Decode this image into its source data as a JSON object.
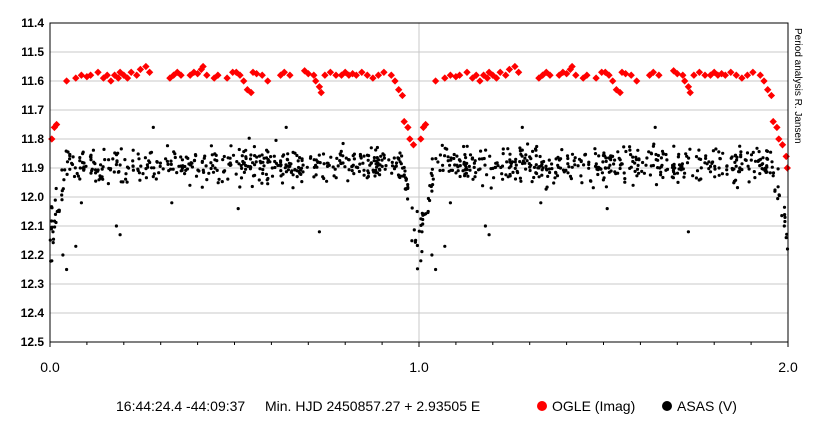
{
  "chart_data": {
    "type": "scatter",
    "x_range": [
      0.0,
      2.0
    ],
    "y_range": [
      11.4,
      12.5
    ],
    "y_inverted": true,
    "y_ticks": [
      "11.4",
      "11.5",
      "11.6",
      "11.7",
      "11.8",
      "11.9",
      "12.0",
      "12.1",
      "12.2",
      "12.3",
      "12.4",
      "12.5"
    ],
    "x_ticks": [
      "0.0",
      "1.0",
      "2.0"
    ],
    "grid": true,
    "side_label": "Period analysis R. Jansen",
    "coords": "16:44:24.4 -44:09:37",
    "ephemeris": "Min. HJD 2450857.27 + 2.93505 E",
    "legend_position": "bottom",
    "series": [
      {
        "name": "OGLE (Imag)",
        "color": "#ff0000",
        "points": [
          [
            0.005,
            11.8
          ],
          [
            0.012,
            11.76
          ],
          [
            0.018,
            11.75
          ],
          [
            0.045,
            11.6
          ],
          [
            0.07,
            11.59
          ],
          [
            0.085,
            11.58
          ],
          [
            0.1,
            11.585
          ],
          [
            0.11,
            11.58
          ],
          [
            0.13,
            11.57
          ],
          [
            0.145,
            11.59
          ],
          [
            0.155,
            11.58
          ],
          [
            0.165,
            11.6
          ],
          [
            0.175,
            11.58
          ],
          [
            0.185,
            11.59
          ],
          [
            0.19,
            11.57
          ],
          [
            0.2,
            11.58
          ],
          [
            0.21,
            11.59
          ],
          [
            0.22,
            11.57
          ],
          [
            0.235,
            11.58
          ],
          [
            0.245,
            11.56
          ],
          [
            0.26,
            11.55
          ],
          [
            0.27,
            11.57
          ],
          [
            0.325,
            11.59
          ],
          [
            0.335,
            11.58
          ],
          [
            0.345,
            11.57
          ],
          [
            0.355,
            11.58
          ],
          [
            0.38,
            11.58
          ],
          [
            0.39,
            11.57
          ],
          [
            0.4,
            11.575
          ],
          [
            0.41,
            11.56
          ],
          [
            0.415,
            11.55
          ],
          [
            0.425,
            11.58
          ],
          [
            0.445,
            11.59
          ],
          [
            0.455,
            11.58
          ],
          [
            0.48,
            11.59
          ],
          [
            0.495,
            11.57
          ],
          [
            0.505,
            11.57
          ],
          [
            0.515,
            11.58
          ],
          [
            0.525,
            11.6
          ],
          [
            0.535,
            11.63
          ],
          [
            0.545,
            11.64
          ],
          [
            0.55,
            11.57
          ],
          [
            0.56,
            11.575
          ],
          [
            0.575,
            11.58
          ],
          [
            0.59,
            11.6
          ],
          [
            0.625,
            11.58
          ],
          [
            0.635,
            11.57
          ],
          [
            0.65,
            11.58
          ],
          [
            0.69,
            11.565
          ],
          [
            0.7,
            11.575
          ],
          [
            0.715,
            11.58
          ],
          [
            0.72,
            11.6
          ],
          [
            0.73,
            11.62
          ],
          [
            0.735,
            11.64
          ],
          [
            0.745,
            11.58
          ],
          [
            0.76,
            11.57
          ],
          [
            0.775,
            11.58
          ],
          [
            0.79,
            11.58
          ],
          [
            0.8,
            11.57
          ],
          [
            0.81,
            11.58
          ],
          [
            0.82,
            11.575
          ],
          [
            0.83,
            11.58
          ],
          [
            0.845,
            11.57
          ],
          [
            0.86,
            11.58
          ],
          [
            0.875,
            11.59
          ],
          [
            0.89,
            11.58
          ],
          [
            0.905,
            11.57
          ],
          [
            0.925,
            11.58
          ],
          [
            0.935,
            11.6
          ],
          [
            0.945,
            11.63
          ],
          [
            0.955,
            11.65
          ],
          [
            0.96,
            11.74
          ],
          [
            0.97,
            11.76
          ],
          [
            0.975,
            11.8
          ],
          [
            0.985,
            11.82
          ],
          [
            1.005,
            11.8
          ],
          [
            1.012,
            11.76
          ],
          [
            1.018,
            11.75
          ],
          [
            1.045,
            11.6
          ],
          [
            1.07,
            11.59
          ],
          [
            1.085,
            11.58
          ],
          [
            1.1,
            11.585
          ],
          [
            1.11,
            11.58
          ],
          [
            1.13,
            11.57
          ],
          [
            1.145,
            11.59
          ],
          [
            1.155,
            11.58
          ],
          [
            1.165,
            11.6
          ],
          [
            1.175,
            11.58
          ],
          [
            1.185,
            11.59
          ],
          [
            1.19,
            11.57
          ],
          [
            1.2,
            11.58
          ],
          [
            1.21,
            11.59
          ],
          [
            1.22,
            11.57
          ],
          [
            1.235,
            11.58
          ],
          [
            1.245,
            11.56
          ],
          [
            1.26,
            11.55
          ],
          [
            1.27,
            11.57
          ],
          [
            1.325,
            11.59
          ],
          [
            1.335,
            11.58
          ],
          [
            1.345,
            11.57
          ],
          [
            1.355,
            11.58
          ],
          [
            1.38,
            11.58
          ],
          [
            1.39,
            11.57
          ],
          [
            1.4,
            11.575
          ],
          [
            1.41,
            11.56
          ],
          [
            1.415,
            11.55
          ],
          [
            1.425,
            11.58
          ],
          [
            1.445,
            11.59
          ],
          [
            1.455,
            11.58
          ],
          [
            1.48,
            11.59
          ],
          [
            1.495,
            11.57
          ],
          [
            1.505,
            11.57
          ],
          [
            1.515,
            11.58
          ],
          [
            1.525,
            11.6
          ],
          [
            1.535,
            11.63
          ],
          [
            1.545,
            11.64
          ],
          [
            1.55,
            11.57
          ],
          [
            1.56,
            11.575
          ],
          [
            1.575,
            11.58
          ],
          [
            1.59,
            11.6
          ],
          [
            1.625,
            11.58
          ],
          [
            1.635,
            11.57
          ],
          [
            1.65,
            11.58
          ],
          [
            1.69,
            11.565
          ],
          [
            1.7,
            11.575
          ],
          [
            1.715,
            11.58
          ],
          [
            1.72,
            11.6
          ],
          [
            1.73,
            11.62
          ],
          [
            1.735,
            11.64
          ],
          [
            1.745,
            11.58
          ],
          [
            1.76,
            11.57
          ],
          [
            1.775,
            11.58
          ],
          [
            1.79,
            11.58
          ],
          [
            1.8,
            11.57
          ],
          [
            1.81,
            11.58
          ],
          [
            1.82,
            11.575
          ],
          [
            1.83,
            11.58
          ],
          [
            1.845,
            11.57
          ],
          [
            1.86,
            11.58
          ],
          [
            1.875,
            11.59
          ],
          [
            1.89,
            11.58
          ],
          [
            1.905,
            11.57
          ],
          [
            1.925,
            11.58
          ],
          [
            1.935,
            11.6
          ],
          [
            1.945,
            11.63
          ],
          [
            1.955,
            11.65
          ],
          [
            1.96,
            11.74
          ],
          [
            1.97,
            11.76
          ],
          [
            1.975,
            11.8
          ],
          [
            1.985,
            11.82
          ],
          [
            1.995,
            11.86
          ],
          [
            1.998,
            11.9
          ]
        ]
      },
      {
        "name": "ASAS (V)",
        "color": "#000000",
        "approx_count_per_cycle": 480,
        "mean_mag_out_of_eclipse": 11.89,
        "scatter_mag": 0.055,
        "eclipse_phase_primary": 0.0,
        "eclipse_depth_mag": 12.22,
        "outliers": [
          [
            0.005,
            12.22
          ],
          [
            0.008,
            12.12
          ],
          [
            0.015,
            12.06
          ],
          [
            0.025,
            12.05
          ],
          [
            0.035,
            12.2
          ],
          [
            0.045,
            12.25
          ],
          [
            0.07,
            12.17
          ],
          [
            0.085,
            12.02
          ],
          [
            0.18,
            12.1
          ],
          [
            0.19,
            12.13
          ],
          [
            0.33,
            12.02
          ],
          [
            0.51,
            12.04
          ],
          [
            0.73,
            12.12
          ],
          [
            0.64,
            11.76
          ],
          [
            0.28,
            11.76
          ],
          [
            0.995,
            12.05
          ],
          [
            1.005,
            12.22
          ],
          [
            1.008,
            12.12
          ],
          [
            1.015,
            12.06
          ],
          [
            1.025,
            12.05
          ],
          [
            1.035,
            12.2
          ],
          [
            1.045,
            12.25
          ],
          [
            1.07,
            12.17
          ],
          [
            1.085,
            12.02
          ],
          [
            1.18,
            12.1
          ],
          [
            1.19,
            12.13
          ],
          [
            1.33,
            12.02
          ],
          [
            1.51,
            12.04
          ],
          [
            1.73,
            12.12
          ],
          [
            1.64,
            11.76
          ],
          [
            1.28,
            11.76
          ],
          [
            1.99,
            12.1
          ],
          [
            1.995,
            12.14
          ]
        ]
      }
    ]
  }
}
